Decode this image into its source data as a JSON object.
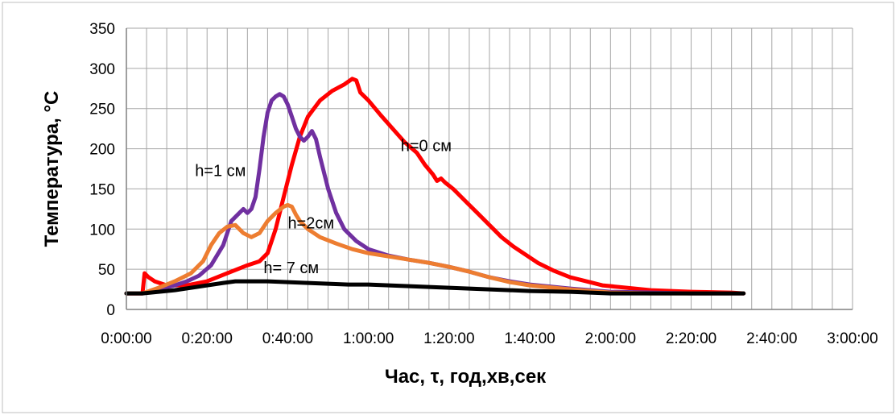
{
  "chart_data": {
    "type": "line",
    "xlabel": "Час, τ, год,хв,сек",
    "ylabel": "Температура, °C",
    "xlim": [
      0,
      180
    ],
    "ylim": [
      0,
      350
    ],
    "x_ticks": [
      0,
      20,
      40,
      60,
      80,
      100,
      120,
      140,
      160,
      180
    ],
    "x_tick_labels": [
      "0:00:00",
      "0:20:00",
      "0:40:00",
      "1:00:00",
      "1:20:00",
      "1:40:00",
      "2:00:00",
      "2:20:00",
      "2:40:00",
      "3:00:00"
    ],
    "y_ticks": [
      0,
      50,
      100,
      150,
      200,
      250,
      300,
      350
    ],
    "y_tick_labels": [
      "0",
      "50",
      "100",
      "150",
      "200",
      "250",
      "300",
      "350"
    ],
    "grid": true,
    "legend": "none",
    "series": [
      {
        "name": "h=0 см",
        "color": "#ff0000",
        "points": [
          [
            0,
            20
          ],
          [
            4,
            20
          ],
          [
            4.5,
            45
          ],
          [
            5.5,
            40
          ],
          [
            7,
            35
          ],
          [
            10,
            30
          ],
          [
            15,
            30
          ],
          [
            20,
            35
          ],
          [
            25,
            45
          ],
          [
            30,
            55
          ],
          [
            33,
            60
          ],
          [
            35,
            70
          ],
          [
            37,
            100
          ],
          [
            39,
            140
          ],
          [
            41,
            180
          ],
          [
            43,
            215
          ],
          [
            45,
            240
          ],
          [
            48,
            260
          ],
          [
            51,
            272
          ],
          [
            54,
            280
          ],
          [
            56,
            287
          ],
          [
            57,
            285
          ],
          [
            58,
            270
          ],
          [
            60,
            260
          ],
          [
            63,
            242
          ],
          [
            66,
            225
          ],
          [
            69,
            208
          ],
          [
            72,
            195
          ],
          [
            74,
            180
          ],
          [
            76,
            168
          ],
          [
            77,
            160
          ],
          [
            78,
            163
          ],
          [
            79,
            158
          ],
          [
            81,
            150
          ],
          [
            84,
            135
          ],
          [
            87,
            120
          ],
          [
            90,
            105
          ],
          [
            93,
            90
          ],
          [
            96,
            78
          ],
          [
            99,
            68
          ],
          [
            102,
            58
          ],
          [
            106,
            48
          ],
          [
            110,
            40
          ],
          [
            114,
            35
          ],
          [
            118,
            30
          ],
          [
            124,
            27
          ],
          [
            130,
            24
          ],
          [
            140,
            22
          ],
          [
            150,
            21
          ],
          [
            153,
            20
          ]
        ]
      },
      {
        "name": "h=1 см",
        "color": "#7030a0",
        "points": [
          [
            0,
            20
          ],
          [
            4,
            20
          ],
          [
            8,
            25
          ],
          [
            12,
            30
          ],
          [
            15,
            35
          ],
          [
            18,
            42
          ],
          [
            21,
            55
          ],
          [
            24,
            80
          ],
          [
            26,
            110
          ],
          [
            28,
            120
          ],
          [
            29,
            125
          ],
          [
            30,
            120
          ],
          [
            31,
            125
          ],
          [
            32,
            140
          ],
          [
            33,
            175
          ],
          [
            34,
            215
          ],
          [
            35,
            245
          ],
          [
            36,
            260
          ],
          [
            37,
            265
          ],
          [
            38,
            268
          ],
          [
            39,
            265
          ],
          [
            40,
            255
          ],
          [
            41,
            240
          ],
          [
            42,
            225
          ],
          [
            43,
            215
          ],
          [
            44,
            210
          ],
          [
            45,
            215
          ],
          [
            46,
            222
          ],
          [
            47,
            212
          ],
          [
            48,
            190
          ],
          [
            50,
            150
          ],
          [
            52,
            120
          ],
          [
            54,
            100
          ],
          [
            57,
            85
          ],
          [
            60,
            75
          ],
          [
            65,
            67
          ],
          [
            70,
            62
          ],
          [
            75,
            58
          ],
          [
            80,
            53
          ],
          [
            85,
            47
          ],
          [
            90,
            40
          ],
          [
            95,
            35
          ],
          [
            100,
            31
          ],
          [
            110,
            26
          ],
          [
            120,
            22
          ],
          [
            130,
            21
          ],
          [
            140,
            20
          ],
          [
            153,
            20
          ]
        ]
      },
      {
        "name": "h=2см",
        "color": "#ed7d31",
        "points": [
          [
            0,
            20
          ],
          [
            4,
            20
          ],
          [
            8,
            27
          ],
          [
            12,
            35
          ],
          [
            16,
            45
          ],
          [
            19,
            60
          ],
          [
            21,
            80
          ],
          [
            23,
            95
          ],
          [
            25,
            103
          ],
          [
            27,
            105
          ],
          [
            29,
            95
          ],
          [
            31,
            90
          ],
          [
            33,
            95
          ],
          [
            35,
            110
          ],
          [
            37,
            120
          ],
          [
            39,
            128
          ],
          [
            40,
            130
          ],
          [
            41,
            128
          ],
          [
            42,
            118
          ],
          [
            43,
            110
          ],
          [
            45,
            100
          ],
          [
            48,
            90
          ],
          [
            52,
            82
          ],
          [
            56,
            75
          ],
          [
            60,
            70
          ],
          [
            65,
            66
          ],
          [
            70,
            62
          ],
          [
            75,
            58
          ],
          [
            80,
            53
          ],
          [
            85,
            47
          ],
          [
            90,
            40
          ],
          [
            95,
            34
          ],
          [
            100,
            30
          ],
          [
            110,
            25
          ],
          [
            120,
            21
          ],
          [
            130,
            20
          ],
          [
            153,
            20
          ]
        ]
      },
      {
        "name": "h=  7 см",
        "color": "#000000",
        "points": [
          [
            0,
            20
          ],
          [
            4,
            20
          ],
          [
            8,
            22
          ],
          [
            12,
            24
          ],
          [
            16,
            27
          ],
          [
            20,
            30
          ],
          [
            24,
            33
          ],
          [
            27,
            35
          ],
          [
            30,
            35
          ],
          [
            35,
            35
          ],
          [
            40,
            34
          ],
          [
            45,
            33
          ],
          [
            50,
            32
          ],
          [
            55,
            31
          ],
          [
            60,
            31
          ],
          [
            65,
            30
          ],
          [
            70,
            29
          ],
          [
            75,
            28
          ],
          [
            80,
            27
          ],
          [
            85,
            26
          ],
          [
            90,
            25
          ],
          [
            95,
            24
          ],
          [
            100,
            23
          ],
          [
            110,
            22
          ],
          [
            120,
            20
          ],
          [
            130,
            20
          ],
          [
            140,
            20
          ],
          [
            153,
            20
          ]
        ]
      }
    ],
    "annotations": [
      {
        "text": "h=0 см",
        "x": 68,
        "y": 197
      },
      {
        "text": "h=1 см",
        "x": 17,
        "y": 166
      },
      {
        "text": "h=2см",
        "x": 40,
        "y": 101
      },
      {
        "text": "h=  7 см",
        "x": 34,
        "y": 45
      }
    ]
  }
}
